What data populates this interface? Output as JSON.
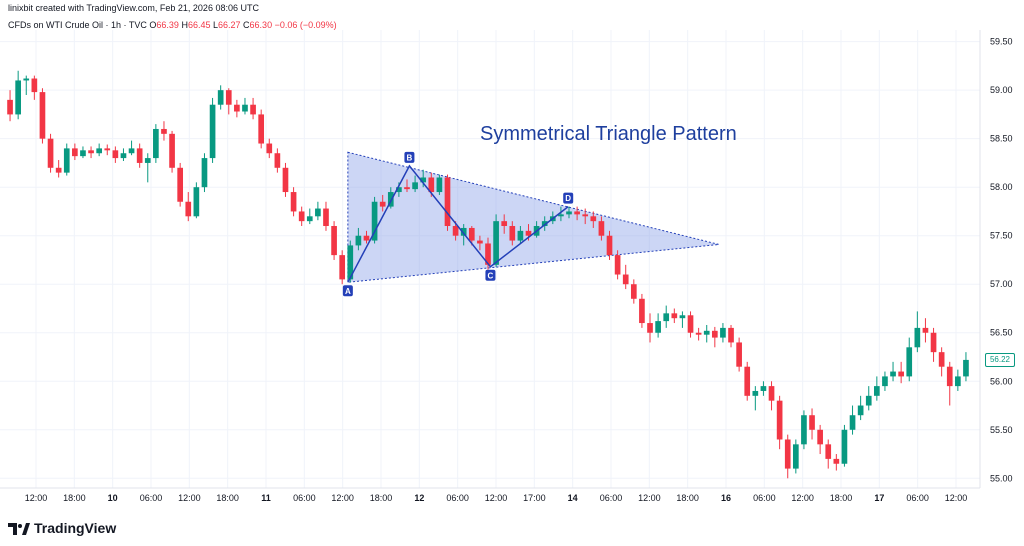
{
  "header": {
    "credit": "linixbit created with TradingView.com, Feb 21, 2026 08:06 UTC",
    "symbol": "CFDs on WTI Crude Oil · 1h · TVC",
    "ohlc": {
      "o_label": "O",
      "o": "66.39",
      "h_label": "H",
      "h": "66.45",
      "l_label": "L",
      "l": "66.27",
      "c_label": "C",
      "c": "66.30",
      "change": "−0.06 (−0.09%)"
    }
  },
  "colors": {
    "up": "#089981",
    "down": "#f23645",
    "pattern_fill": "#8fa3e8",
    "pattern_line": "#2440b8",
    "title": "#1e3f9e"
  },
  "chart_data": {
    "type": "candlestick",
    "title": "Symmetrical Triangle Pattern",
    "ylim": [
      54.9,
      59.62
    ],
    "y_ticks": [
      "59.50",
      "59.00",
      "58.50",
      "58.00",
      "57.50",
      "57.00",
      "56.50",
      "56.00",
      "55.50",
      "55.00"
    ],
    "x_ticks": [
      {
        "label": "12:00",
        "bold": false
      },
      {
        "label": "18:00",
        "bold": false
      },
      {
        "label": "10",
        "bold": true
      },
      {
        "label": "06:00",
        "bold": false
      },
      {
        "label": "12:00",
        "bold": false
      },
      {
        "label": "18:00",
        "bold": false
      },
      {
        "label": "11",
        "bold": true
      },
      {
        "label": "06:00",
        "bold": false
      },
      {
        "label": "12:00",
        "bold": false
      },
      {
        "label": "18:00",
        "bold": false
      },
      {
        "label": "12",
        "bold": true
      },
      {
        "label": "06:00",
        "bold": false
      },
      {
        "label": "12:00",
        "bold": false
      },
      {
        "label": "17:00",
        "bold": false
      },
      {
        "label": "14",
        "bold": true
      },
      {
        "label": "06:00",
        "bold": false
      },
      {
        "label": "12:00",
        "bold": false
      },
      {
        "label": "18:00",
        "bold": false
      },
      {
        "label": "16",
        "bold": true
      },
      {
        "label": "06:00",
        "bold": false
      },
      {
        "label": "12:00",
        "bold": false
      },
      {
        "label": "18:00",
        "bold": false
      },
      {
        "label": "17",
        "bold": true
      },
      {
        "label": "06:00",
        "bold": false
      },
      {
        "label": "12:00",
        "bold": false
      }
    ],
    "candles": [
      [
        58.9,
        58.75,
        59.0,
        58.68
      ],
      [
        58.75,
        59.1,
        59.2,
        58.7
      ],
      [
        59.1,
        59.12,
        59.15,
        58.95
      ],
      [
        59.12,
        58.98,
        59.15,
        58.9
      ],
      [
        58.98,
        58.5,
        59.02,
        58.45
      ],
      [
        58.5,
        58.2,
        58.55,
        58.15
      ],
      [
        58.2,
        58.15,
        58.28,
        58.1
      ],
      [
        58.15,
        58.4,
        58.45,
        58.12
      ],
      [
        58.4,
        58.32,
        58.45,
        58.28
      ],
      [
        58.32,
        58.38,
        58.42,
        58.3
      ],
      [
        58.38,
        58.35,
        58.42,
        58.3
      ],
      [
        58.35,
        58.4,
        58.45,
        58.32
      ],
      [
        58.4,
        58.38,
        58.44,
        58.33
      ],
      [
        58.38,
        58.3,
        58.42,
        58.25
      ],
      [
        58.3,
        58.35,
        58.4,
        58.27
      ],
      [
        58.35,
        58.4,
        58.48,
        58.33
      ],
      [
        58.4,
        58.25,
        58.45,
        58.2
      ],
      [
        58.25,
        58.3,
        58.35,
        58.05
      ],
      [
        58.3,
        58.6,
        58.65,
        58.25
      ],
      [
        58.6,
        58.55,
        58.68,
        58.48
      ],
      [
        58.55,
        58.2,
        58.58,
        58.15
      ],
      [
        58.2,
        57.85,
        58.25,
        57.8
      ],
      [
        57.85,
        57.7,
        57.95,
        57.65
      ],
      [
        57.7,
        58.0,
        58.05,
        57.68
      ],
      [
        58.0,
        58.3,
        58.35,
        57.95
      ],
      [
        58.3,
        58.85,
        58.92,
        58.25
      ],
      [
        58.85,
        59.0,
        59.05,
        58.8
      ],
      [
        59.0,
        58.85,
        59.02,
        58.75
      ],
      [
        58.85,
        58.78,
        58.9,
        58.72
      ],
      [
        58.78,
        58.85,
        58.92,
        58.75
      ],
      [
        58.85,
        58.75,
        58.92,
        58.7
      ],
      [
        58.75,
        58.45,
        58.8,
        58.4
      ],
      [
        58.45,
        58.35,
        58.5,
        58.3
      ],
      [
        58.35,
        58.2,
        58.4,
        58.15
      ],
      [
        58.2,
        57.95,
        58.25,
        57.9
      ],
      [
        57.95,
        57.75,
        58.0,
        57.7
      ],
      [
        57.75,
        57.65,
        57.8,
        57.6
      ],
      [
        57.65,
        57.7,
        57.78,
        57.62
      ],
      [
        57.7,
        57.78,
        57.85,
        57.66
      ],
      [
        57.78,
        57.6,
        57.85,
        57.55
      ],
      [
        57.6,
        57.3,
        57.65,
        57.25
      ],
      [
        57.3,
        57.05,
        57.35,
        57.0
      ],
      [
        57.05,
        57.4,
        57.45,
        57.02
      ],
      [
        57.4,
        57.5,
        57.58,
        57.35
      ],
      [
        57.5,
        57.45,
        57.55,
        57.42
      ],
      [
        57.45,
        57.85,
        57.9,
        57.42
      ],
      [
        57.85,
        57.8,
        57.92,
        57.75
      ],
      [
        57.8,
        57.95,
        58.0,
        57.78
      ],
      [
        57.95,
        58.0,
        58.05,
        57.9
      ],
      [
        58.0,
        57.98,
        58.08,
        57.95
      ],
      [
        57.98,
        58.05,
        58.12,
        57.95
      ],
      [
        58.05,
        58.1,
        58.18,
        58.0
      ],
      [
        58.1,
        57.95,
        58.15,
        57.9
      ],
      [
        57.95,
        58.1,
        58.13,
        57.92
      ],
      [
        58.1,
        57.6,
        58.13,
        57.55
      ],
      [
        57.6,
        57.5,
        57.65,
        57.45
      ],
      [
        57.5,
        57.58,
        57.62,
        57.4
      ],
      [
        57.58,
        57.45,
        57.6,
        57.4
      ],
      [
        57.45,
        57.42,
        57.5,
        57.35
      ],
      [
        57.42,
        57.2,
        57.48,
        57.15
      ],
      [
        57.2,
        57.65,
        57.72,
        57.18
      ],
      [
        57.65,
        57.6,
        57.72,
        57.52
      ],
      [
        57.6,
        57.45,
        57.65,
        57.4
      ],
      [
        57.45,
        57.55,
        57.6,
        57.42
      ],
      [
        57.55,
        57.5,
        57.62,
        57.45
      ],
      [
        57.5,
        57.6,
        57.65,
        57.48
      ],
      [
        57.6,
        57.65,
        57.7,
        57.55
      ],
      [
        57.65,
        57.7,
        57.75,
        57.62
      ],
      [
        57.7,
        57.72,
        57.8,
        57.65
      ],
      [
        57.72,
        57.75,
        57.8,
        57.68
      ],
      [
        57.75,
        57.72,
        57.8,
        57.66
      ],
      [
        57.72,
        57.7,
        57.78,
        57.62
      ],
      [
        57.7,
        57.65,
        57.75,
        57.58
      ],
      [
        57.65,
        57.5,
        57.7,
        57.45
      ],
      [
        57.5,
        57.3,
        57.55,
        57.25
      ],
      [
        57.3,
        57.1,
        57.35,
        57.05
      ],
      [
        57.1,
        57.0,
        57.2,
        56.95
      ],
      [
        57.0,
        56.85,
        57.05,
        56.8
      ],
      [
        56.85,
        56.6,
        56.9,
        56.55
      ],
      [
        56.6,
        56.5,
        56.7,
        56.4
      ],
      [
        56.5,
        56.62,
        56.7,
        56.45
      ],
      [
        56.62,
        56.7,
        56.78,
        56.55
      ],
      [
        56.7,
        56.65,
        56.75,
        56.6
      ],
      [
        56.65,
        56.68,
        56.72,
        56.55
      ],
      [
        56.68,
        56.5,
        56.72,
        56.45
      ],
      [
        56.5,
        56.48,
        56.55,
        56.42
      ],
      [
        56.48,
        56.52,
        56.58,
        56.4
      ],
      [
        56.52,
        56.45,
        56.56,
        56.35
      ],
      [
        56.45,
        56.55,
        56.6,
        56.4
      ],
      [
        56.55,
        56.4,
        56.58,
        56.35
      ],
      [
        56.4,
        56.15,
        56.45,
        56.1
      ],
      [
        56.15,
        55.85,
        56.2,
        55.8
      ],
      [
        55.85,
        55.9,
        55.95,
        55.7
      ],
      [
        55.9,
        55.95,
        56.0,
        55.85
      ],
      [
        55.95,
        55.8,
        56.0,
        55.7
      ],
      [
        55.8,
        55.4,
        55.85,
        55.3
      ],
      [
        55.4,
        55.1,
        55.45,
        55.0
      ],
      [
        55.1,
        55.35,
        55.4,
        55.05
      ],
      [
        55.35,
        55.65,
        55.7,
        55.3
      ],
      [
        55.65,
        55.5,
        55.72,
        55.4
      ],
      [
        55.5,
        55.35,
        55.55,
        55.25
      ],
      [
        55.35,
        55.2,
        55.4,
        55.1
      ],
      [
        55.2,
        55.15,
        55.25,
        55.08
      ],
      [
        55.15,
        55.5,
        55.55,
        55.12
      ],
      [
        55.5,
        55.65,
        55.75,
        55.45
      ],
      [
        55.65,
        55.75,
        55.85,
        55.6
      ],
      [
        55.75,
        55.85,
        55.95,
        55.7
      ],
      [
        55.85,
        55.95,
        56.05,
        55.8
      ],
      [
        55.95,
        56.05,
        56.1,
        55.9
      ],
      [
        56.05,
        56.1,
        56.2,
        56.0
      ],
      [
        56.1,
        56.05,
        56.2,
        55.98
      ],
      [
        56.05,
        56.35,
        56.45,
        56.0
      ],
      [
        56.35,
        56.55,
        56.72,
        56.3
      ],
      [
        56.55,
        56.5,
        56.65,
        56.4
      ],
      [
        56.5,
        56.3,
        56.55,
        56.2
      ],
      [
        56.3,
        56.15,
        56.35,
        56.05
      ],
      [
        56.15,
        55.95,
        56.2,
        55.75
      ],
      [
        55.95,
        56.05,
        56.12,
        55.9
      ],
      [
        56.05,
        56.22,
        56.3,
        56.0
      ]
    ],
    "pattern": {
      "points": [
        {
          "label": "A",
          "x": 41.7,
          "y": 57.02
        },
        {
          "label": "B",
          "x": 49.3,
          "y": 58.22
        },
        {
          "label": "C",
          "x": 59.3,
          "y": 57.18
        },
        {
          "label": "D",
          "x": 68.9,
          "y": 57.8
        }
      ],
      "triangle": [
        {
          "x": 41.7,
          "y": 58.36
        },
        {
          "x": 87.5,
          "y": 57.41
        },
        {
          "x": 41.7,
          "y": 57.02
        }
      ]
    },
    "last_price": "56.22"
  },
  "footer": {
    "logo_text": "TradingView"
  }
}
